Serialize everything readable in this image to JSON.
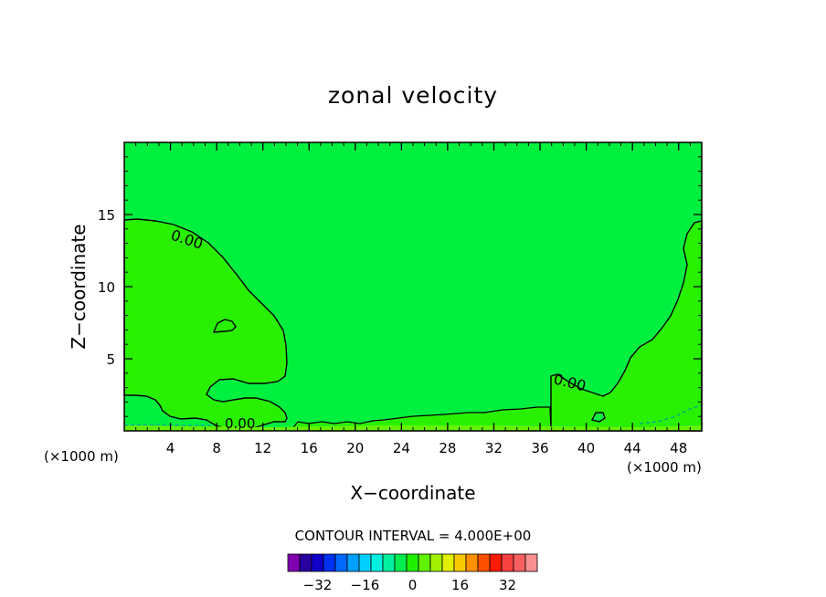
{
  "chart_data": {
    "type": "contour",
    "title": "zonal velocity",
    "xlabel": "X−coordinate",
    "ylabel": "Z−coordinate",
    "x_unit_left": "(×1000 m)",
    "x_unit_right": "(×1000 m)",
    "xlim": [
      0,
      50
    ],
    "ylim": [
      0,
      20
    ],
    "x_ticks": [
      4,
      8,
      12,
      16,
      20,
      24,
      28,
      32,
      36,
      40,
      44,
      48
    ],
    "y_ticks": [
      5,
      10,
      15
    ],
    "contour_interval_text": "CONTOUR INTERVAL = 4.000E+00",
    "contour_labels": [
      {
        "text": "0.00",
        "x": 5.5,
        "z": 13.5
      },
      {
        "text": "0.00",
        "x": 38.5,
        "z": 3.3
      },
      {
        "text": "0.00",
        "x": 10.3,
        "z": 0.5
      }
    ],
    "colorbar": {
      "tick_values": [
        -32,
        -16,
        0,
        16,
        32
      ],
      "tick_labels": [
        "−32",
        "−16",
        "0",
        "16",
        "32"
      ],
      "colors": [
        "#8000b0",
        "#2a00a0",
        "#1000c8",
        "#0030f0",
        "#0068ff",
        "#00a0ff",
        "#00d0ff",
        "#00f0e0",
        "#00f0a0",
        "#00ee50",
        "#20f000",
        "#60f000",
        "#a0f000",
        "#e0f000",
        "#f8c800",
        "#ff9000",
        "#ff5000",
        "#ff1a00",
        "#f84040",
        "#f86060",
        "#f89090"
      ]
    },
    "colors": {
      "background_fill": "#00f040",
      "positive_region_fill": "#28f000",
      "surface_band_fill": "#66f200",
      "contour_line": "#000000",
      "negative_contour": "#00a0a0"
    }
  }
}
